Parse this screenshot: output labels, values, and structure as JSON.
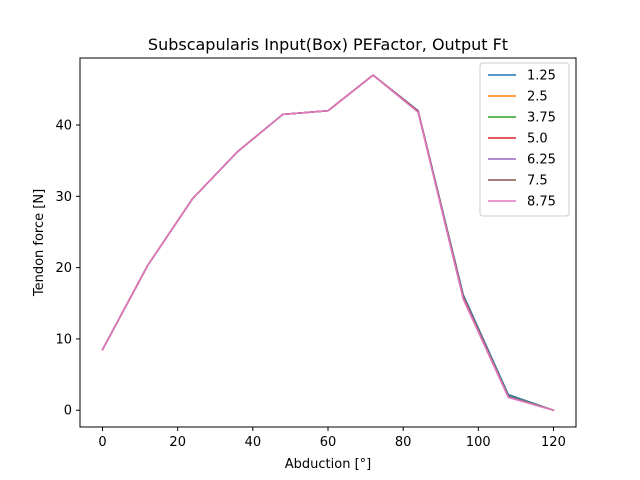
{
  "chart_data": {
    "type": "line",
    "title": "Subscapularis Input(Box) PEFactor, Output Ft",
    "xlabel": "Abduction [°]",
    "ylabel": "Tendon force [N]",
    "x": [
      0,
      12,
      24,
      36,
      48,
      60,
      72,
      84,
      96,
      108,
      120
    ],
    "xlim": [
      -6,
      126
    ],
    "ylim": [
      -2.35,
      49.4
    ],
    "xticks": [
      0,
      20,
      40,
      60,
      80,
      100,
      120
    ],
    "yticks": [
      0,
      10,
      20,
      30,
      40
    ],
    "grid": false,
    "legend_position": "top-right",
    "series": [
      {
        "name": "1.25",
        "color": "#1f77b4",
        "values": [
          8.5,
          20.3,
          29.7,
          36.3,
          41.5,
          42.0,
          47.0,
          42.0,
          16.2,
          2.2,
          0.0
        ]
      },
      {
        "name": "2.5",
        "color": "#ff7f0e",
        "values": [
          8.5,
          20.3,
          29.7,
          36.3,
          41.5,
          42.0,
          47.0,
          41.9,
          15.9,
          2.0,
          0.0
        ]
      },
      {
        "name": "3.75",
        "color": "#2ca02c",
        "values": [
          8.5,
          20.3,
          29.7,
          36.3,
          41.5,
          42.0,
          47.0,
          41.9,
          15.8,
          2.0,
          0.0
        ]
      },
      {
        "name": "5.0",
        "color": "#d62728",
        "values": [
          8.5,
          20.3,
          29.7,
          36.3,
          41.5,
          42.0,
          47.0,
          41.9,
          15.8,
          1.9,
          0.0
        ]
      },
      {
        "name": "6.25",
        "color": "#9467bd",
        "values": [
          8.5,
          20.3,
          29.7,
          36.3,
          41.5,
          42.0,
          47.0,
          41.8,
          15.7,
          1.9,
          0.0
        ]
      },
      {
        "name": "7.5",
        "color": "#8c564b",
        "values": [
          8.5,
          20.3,
          29.7,
          36.3,
          41.5,
          42.0,
          47.0,
          41.8,
          15.6,
          1.8,
          0.0
        ]
      },
      {
        "name": "8.75",
        "color": "#e377c2",
        "values": [
          8.5,
          20.3,
          29.7,
          36.3,
          41.5,
          42.0,
          47.0,
          41.8,
          15.6,
          1.8,
          0.0
        ]
      }
    ]
  }
}
